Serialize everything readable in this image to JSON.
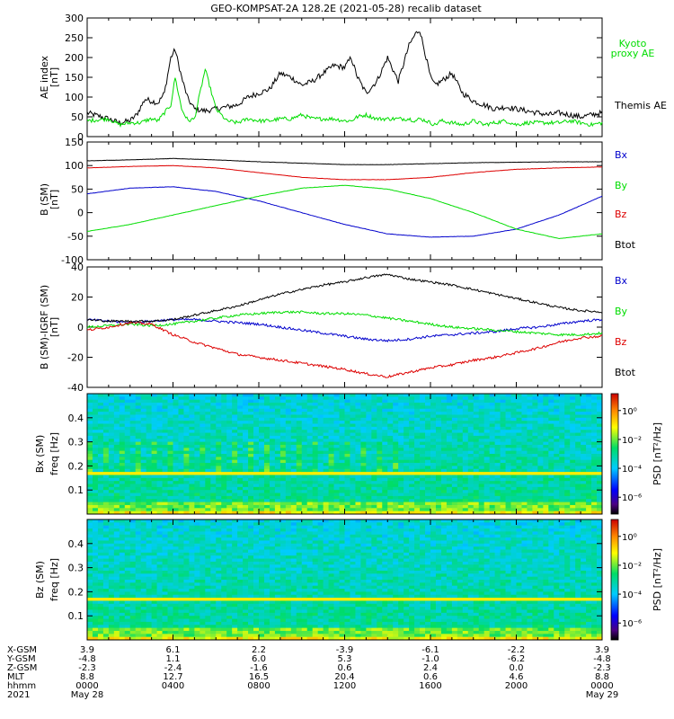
{
  "title": "GEO-KOMPSAT-2A 128.2E (2021-05-28) recalib dataset",
  "colors": {
    "black": "#000000",
    "green": "#00dd00",
    "red": "#dd0000",
    "blue": "#0000cc"
  },
  "chart_data": [
    {
      "type": "line",
      "panel": "ae",
      "ylabel": "AE index",
      "yunit": "[nT]",
      "ylim": [
        0,
        300
      ],
      "yticks": [
        "300",
        "250",
        "200",
        "150",
        "100",
        "50",
        "0"
      ],
      "x_hours": [
        0,
        1,
        1.5,
        2,
        2.3,
        2.5,
        2.7,
        3,
        3.3,
        3.6,
        3.9,
        4.1,
        4.4,
        4.7,
        5,
        5.5,
        6,
        6.5,
        7,
        7.5,
        8,
        8.5,
        9,
        9.5,
        10,
        10.5,
        11,
        11.5,
        12,
        12.3,
        12.6,
        13,
        13.5,
        14,
        14.5,
        15,
        15.3,
        15.5,
        15.8,
        16,
        16.2,
        16.5,
        17,
        17.5,
        18,
        18.5,
        19,
        19.5,
        20,
        20.5,
        21,
        21.5,
        22,
        22.5,
        23,
        23.5,
        24
      ],
      "series": [
        {
          "name": "Themis AE",
          "color": "#000000",
          "values": [
            60,
            45,
            35,
            40,
            55,
            75,
            95,
            90,
            85,
            110,
            200,
            220,
            150,
            95,
            70,
            65,
            70,
            75,
            80,
            100,
            110,
            120,
            160,
            150,
            130,
            140,
            160,
            180,
            175,
            200,
            150,
            110,
            140,
            200,
            140,
            230,
            260,
            270,
            200,
            150,
            130,
            140,
            160,
            110,
            90,
            80,
            70,
            75,
            70,
            65,
            60,
            55,
            60,
            55,
            50,
            55,
            60
          ]
        },
        {
          "name": "Kyoto proxy AE",
          "color": "#00dd00",
          "values": [
            40,
            45,
            30,
            35,
            35,
            35,
            40,
            45,
            40,
            60,
            80,
            150,
            70,
            40,
            45,
            170,
            70,
            40,
            35,
            45,
            40,
            40,
            45,
            45,
            55,
            45,
            45,
            45,
            40,
            40,
            50,
            55,
            45,
            45,
            45,
            45,
            40,
            45,
            40,
            35,
            30,
            40,
            35,
            30,
            40,
            30,
            35,
            40,
            30,
            35,
            35,
            35,
            35,
            40,
            35,
            30,
            35
          ]
        }
      ]
    },
    {
      "type": "line",
      "panel": "b_sm",
      "ylabel": "B (SM)",
      "yunit": "[nT]",
      "ylim": [
        -100,
        150
      ],
      "yticks": [
        "150",
        "100",
        "50",
        "0",
        "-50",
        "-100"
      ],
      "x_hours": [
        0,
        2,
        4,
        6,
        8,
        10,
        12,
        14,
        16,
        18,
        20,
        22,
        24
      ],
      "series": [
        {
          "name": "Bx",
          "color": "#0000cc",
          "values": [
            40,
            52,
            55,
            45,
            25,
            0,
            -25,
            -45,
            -52,
            -50,
            -35,
            -5,
            35
          ]
        },
        {
          "name": "By",
          "color": "#00dd00",
          "values": [
            -40,
            -25,
            -5,
            15,
            35,
            52,
            58,
            50,
            30,
            0,
            -35,
            -55,
            -45
          ]
        },
        {
          "name": "Bz",
          "color": "#dd0000",
          "values": [
            95,
            98,
            100,
            95,
            85,
            75,
            70,
            70,
            75,
            85,
            92,
            95,
            97
          ]
        },
        {
          "name": "Btot",
          "color": "#000000",
          "values": [
            110,
            112,
            115,
            112,
            108,
            105,
            102,
            102,
            104,
            106,
            107,
            108,
            108
          ]
        }
      ]
    },
    {
      "type": "line",
      "panel": "b_minus_igrf",
      "ylabel": "B (SM)-IGRF (SM)",
      "yunit": "[nT]",
      "ylim": [
        -40,
        40
      ],
      "yticks": [
        "40",
        "20",
        "0",
        "-20",
        "-40"
      ],
      "x_hours": [
        0,
        1,
        2,
        3,
        4,
        5,
        6,
        7,
        8,
        9,
        10,
        11,
        12,
        13,
        14,
        15,
        16,
        17,
        18,
        19,
        20,
        21,
        22,
        23,
        24
      ],
      "series": [
        {
          "name": "Bx",
          "color": "#0000cc",
          "values": [
            5,
            4,
            3,
            4,
            5,
            5,
            4,
            3,
            2,
            0,
            -2,
            -4,
            -6,
            -8,
            -9,
            -8,
            -6,
            -5,
            -4,
            -3,
            -1,
            0,
            2,
            4,
            5
          ]
        },
        {
          "name": "By",
          "color": "#00dd00",
          "values": [
            0,
            1,
            2,
            1,
            2,
            4,
            6,
            8,
            9,
            10,
            10,
            9,
            9,
            8,
            6,
            4,
            2,
            0,
            -1,
            -2,
            -3,
            -4,
            -5,
            -5,
            -4
          ]
        },
        {
          "name": "Bz",
          "color": "#dd0000",
          "values": [
            -2,
            0,
            3,
            2,
            -5,
            -10,
            -14,
            -18,
            -20,
            -22,
            -24,
            -26,
            -28,
            -31,
            -33,
            -30,
            -27,
            -25,
            -22,
            -20,
            -17,
            -14,
            -10,
            -7,
            -6
          ]
        },
        {
          "name": "Btot",
          "color": "#000000",
          "values": [
            5,
            4,
            4,
            4,
            5,
            8,
            11,
            14,
            18,
            22,
            25,
            28,
            30,
            33,
            35,
            32,
            30,
            28,
            25,
            22,
            19,
            16,
            13,
            11,
            10
          ]
        }
      ]
    },
    {
      "type": "heatmap",
      "panel": "bx_spectrogram",
      "ylabel": "Bx (SM)",
      "yunit": "freq [Hz]",
      "ylim": [
        0,
        0.5
      ],
      "yticks": [
        "0.4",
        "0.3",
        "0.2",
        "0.1"
      ],
      "colorbar_label": "PSD [nT²/Hz]",
      "colorbar_ticks": [
        "10⁰",
        "10⁻²",
        "10⁻⁴",
        "10⁻⁶"
      ],
      "harmonic_band_hz": 0.167
    },
    {
      "type": "heatmap",
      "panel": "bz_spectrogram",
      "ylabel": "Bz (SM)",
      "yunit": "freq [Hz]",
      "ylim": [
        0,
        0.5
      ],
      "yticks": [
        "0.4",
        "0.3",
        "0.2",
        "0.1"
      ],
      "colorbar_label": "PSD [nT²/Hz]",
      "colorbar_ticks": [
        "10⁰",
        "10⁻²",
        "10⁻⁴",
        "10⁻⁶"
      ],
      "harmonic_band_hz": 0.167
    }
  ],
  "legend_ae": {
    "kyoto_line1": "Kyoto",
    "kyoto_line2": "proxy AE",
    "themis": "Themis AE"
  },
  "footer": {
    "labels": [
      "X-GSM",
      "Y-GSM",
      "Z-GSM",
      "MLT",
      "hhmm",
      "2021"
    ],
    "columns": [
      [
        "3.9",
        "-4.8",
        "-2.3",
        "8.8",
        "0000",
        "May 28"
      ],
      [
        "6.1",
        "1.1",
        "-2.4",
        "12.7",
        "0400",
        ""
      ],
      [
        "2.2",
        "6.0",
        "-1.6",
        "16.5",
        "0800",
        ""
      ],
      [
        "-3.9",
        "5.3",
        "0.6",
        "20.4",
        "1200",
        ""
      ],
      [
        "-6.1",
        "-1.0",
        "2.4",
        "0.6",
        "1600",
        ""
      ],
      [
        "-2.2",
        "-6.2",
        "0.0",
        "4.6",
        "2000",
        ""
      ],
      [
        "3.9",
        "-4.8",
        "-2.3",
        "8.8",
        "0000",
        "May 29"
      ]
    ]
  }
}
